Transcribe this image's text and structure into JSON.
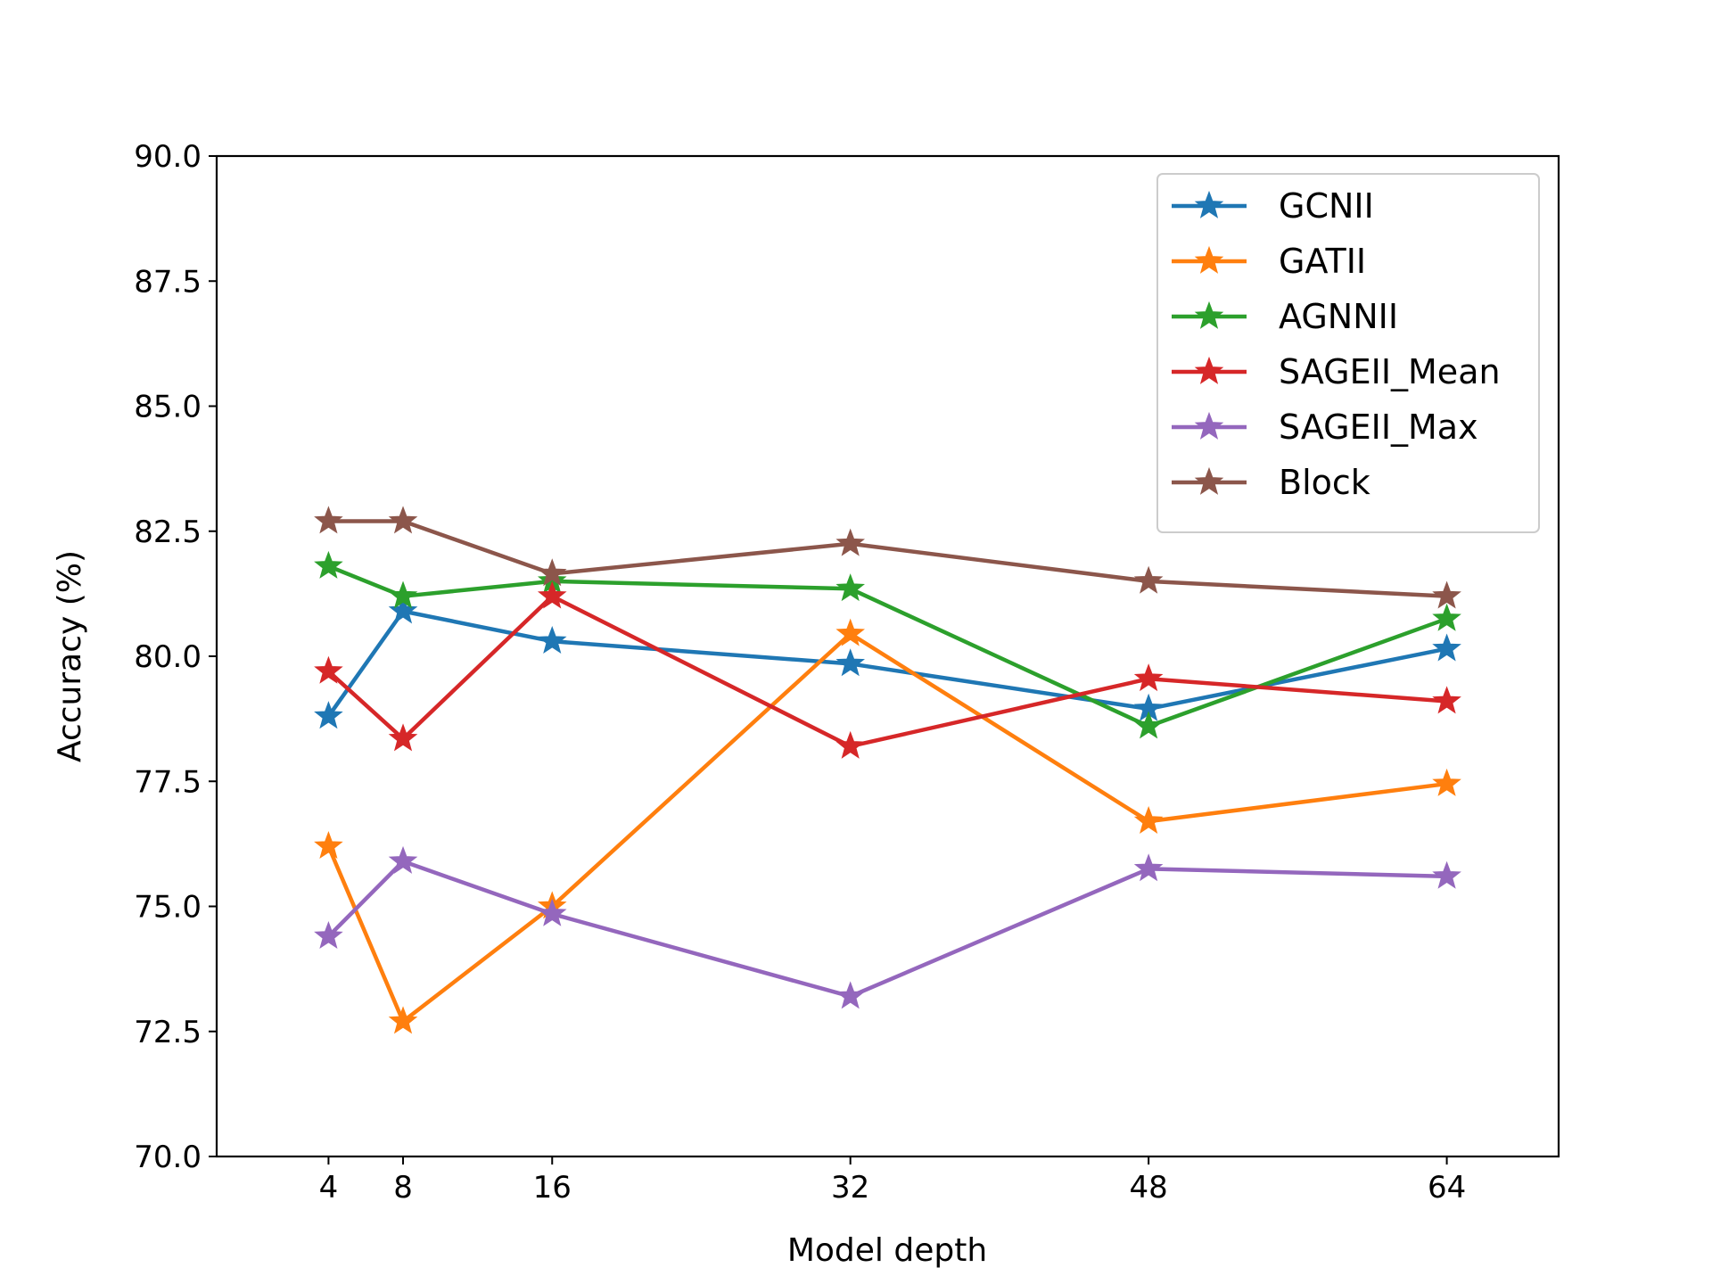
{
  "chart_data": {
    "type": "line",
    "title": "",
    "xlabel": "Model depth",
    "ylabel": "Accuracy (%)",
    "x": [
      4,
      8,
      16,
      32,
      48,
      64
    ],
    "xticks": [
      4,
      8,
      16,
      32,
      48,
      64
    ],
    "xtick_labels": [
      "4",
      "8",
      "16",
      "32",
      "48",
      "64"
    ],
    "xlim": [
      -2,
      70
    ],
    "ylim": [
      70.0,
      90.0
    ],
    "yticks": [
      70.0,
      72.5,
      75.0,
      77.5,
      80.0,
      82.5,
      85.0,
      87.5,
      90.0
    ],
    "ytick_labels": [
      "70.0",
      "72.5",
      "75.0",
      "77.5",
      "80.0",
      "82.5",
      "85.0",
      "87.5",
      "90.0"
    ],
    "grid": false,
    "legend_position": "top-right",
    "marker": "star",
    "series": [
      {
        "name": "GCNII",
        "color": "#1f77b4",
        "values": [
          78.8,
          80.9,
          80.3,
          79.85,
          78.95,
          80.15
        ]
      },
      {
        "name": "GATII",
        "color": "#ff7f0e",
        "values": [
          76.2,
          72.7,
          75.0,
          80.45,
          76.7,
          77.45
        ]
      },
      {
        "name": "AGNNII",
        "color": "#2ca02c",
        "values": [
          81.8,
          81.2,
          81.5,
          81.35,
          78.6,
          80.75
        ]
      },
      {
        "name": "SAGEII_Mean",
        "color": "#d62728",
        "values": [
          79.7,
          78.35,
          81.2,
          78.2,
          79.55,
          79.1
        ]
      },
      {
        "name": "SAGEII_Max",
        "color": "#9467bd",
        "values": [
          74.4,
          75.9,
          74.85,
          73.2,
          75.75,
          75.6
        ]
      },
      {
        "name": "Block",
        "color": "#8c564b",
        "values": [
          82.7,
          82.7,
          81.65,
          82.25,
          81.5,
          81.2
        ]
      }
    ]
  }
}
